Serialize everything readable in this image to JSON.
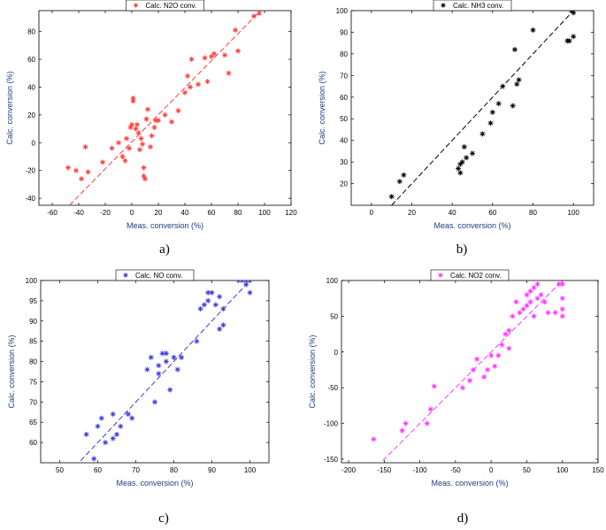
{
  "chart_data": [
    {
      "type": "scatter",
      "panel_label": "a)",
      "legend": "Calc. N2O conv.",
      "legend_position": "top-center",
      "color": "#ff3b3b",
      "xlabel": "Meas. conversion (%)",
      "ylabel": "Calc. conversion (%)",
      "xlim": [
        -70,
        120
      ],
      "ylim": [
        -45,
        95
      ],
      "xticks": [
        -60,
        -40,
        -20,
        0,
        20,
        40,
        60,
        80,
        100,
        120
      ],
      "yticks": [
        -40,
        -20,
        0,
        20,
        40,
        60,
        80
      ],
      "fit_line": [
        [
          -47,
          -45
        ],
        [
          97,
          95
        ]
      ],
      "points": [
        [
          -48,
          -18
        ],
        [
          -42,
          -20
        ],
        [
          -38,
          -26
        ],
        [
          -35,
          -3
        ],
        [
          -33,
          -21
        ],
        [
          -22,
          -14
        ],
        [
          -15,
          -4
        ],
        [
          -10,
          0
        ],
        [
          -7,
          -10
        ],
        [
          -5,
          -13
        ],
        [
          -4,
          3
        ],
        [
          -2,
          -4
        ],
        [
          -1,
          11
        ],
        [
          0,
          13
        ],
        [
          1,
          30
        ],
        [
          1,
          32
        ],
        [
          3,
          10
        ],
        [
          4,
          13
        ],
        [
          5,
          7
        ],
        [
          6,
          -5
        ],
        [
          7,
          3
        ],
        [
          8,
          -1
        ],
        [
          9,
          -18
        ],
        [
          9,
          -24
        ],
        [
          10,
          -26
        ],
        [
          11,
          17
        ],
        [
          12,
          24
        ],
        [
          14,
          -3
        ],
        [
          15,
          5
        ],
        [
          17,
          11
        ],
        [
          18,
          16
        ],
        [
          20,
          16
        ],
        [
          25,
          20
        ],
        [
          30,
          15
        ],
        [
          35,
          23
        ],
        [
          40,
          36
        ],
        [
          42,
          48
        ],
        [
          44,
          40
        ],
        [
          45,
          60
        ],
        [
          50,
          42
        ],
        [
          55,
          61
        ],
        [
          57,
          44
        ],
        [
          60,
          62
        ],
        [
          62,
          64
        ],
        [
          70,
          63
        ],
        [
          73,
          50
        ],
        [
          78,
          81
        ],
        [
          80,
          66
        ],
        [
          92,
          91
        ],
        [
          96,
          93
        ]
      ]
    },
    {
      "type": "scatter",
      "panel_label": "b)",
      "legend": "Calc. NH3 conv.",
      "legend_position": "top-center",
      "color": "#000000",
      "xlabel": "Meas. conversion (%)",
      "ylabel": "Calc. conversion (%)",
      "xlim": [
        -10,
        110
      ],
      "ylim": [
        10,
        100
      ],
      "xticks": [
        0,
        20,
        40,
        60,
        80,
        100
      ],
      "yticks": [
        20,
        30,
        40,
        50,
        60,
        70,
        80,
        90,
        100
      ],
      "fit_line": [
        [
          10,
          10
        ],
        [
          100,
          100
        ]
      ],
      "points": [
        [
          10,
          14
        ],
        [
          14,
          21
        ],
        [
          16,
          24
        ],
        [
          43,
          27
        ],
        [
          44,
          25
        ],
        [
          44,
          29
        ],
        [
          45,
          30
        ],
        [
          46,
          37
        ],
        [
          47,
          32
        ],
        [
          50,
          34
        ],
        [
          55,
          43
        ],
        [
          59,
          48
        ],
        [
          60,
          53
        ],
        [
          63,
          57
        ],
        [
          65,
          65
        ],
        [
          70,
          56
        ],
        [
          71,
          82
        ],
        [
          72,
          66
        ],
        [
          73,
          68
        ],
        [
          80,
          91
        ],
        [
          97,
          86
        ],
        [
          98,
          86
        ],
        [
          99,
          100
        ],
        [
          100,
          99
        ],
        [
          100,
          88
        ]
      ]
    },
    {
      "type": "scatter",
      "panel_label": "c)",
      "legend": "Calc. NO conv.",
      "legend_position": "top-center",
      "color": "#3a3ad6",
      "xlabel": "Meas. conversion (%)",
      "ylabel": "Calc. conversion (%)",
      "xlim": [
        45,
        105
      ],
      "ylim": [
        55,
        100
      ],
      "xticks": [
        50,
        60,
        70,
        80,
        90,
        100
      ],
      "yticks": [
        60,
        65,
        70,
        75,
        80,
        85,
        90,
        95,
        100
      ],
      "fit_line": [
        [
          55.5,
          55.5
        ],
        [
          100,
          100
        ]
      ],
      "points": [
        [
          57,
          62
        ],
        [
          59,
          56
        ],
        [
          60,
          64
        ],
        [
          61,
          66
        ],
        [
          62,
          60
        ],
        [
          64,
          67
        ],
        [
          64,
          61
        ],
        [
          65,
          62
        ],
        [
          66,
          64
        ],
        [
          68,
          67
        ],
        [
          69,
          66
        ],
        [
          73,
          78
        ],
        [
          74,
          81
        ],
        [
          75,
          70
        ],
        [
          76,
          77
        ],
        [
          76,
          79
        ],
        [
          77,
          82
        ],
        [
          78,
          80
        ],
        [
          78,
          82
        ],
        [
          79,
          73
        ],
        [
          80,
          81
        ],
        [
          81,
          78
        ],
        [
          82,
          81
        ],
        [
          86,
          85
        ],
        [
          87,
          93
        ],
        [
          88,
          94
        ],
        [
          89,
          95
        ],
        [
          89,
          97
        ],
        [
          90,
          97
        ],
        [
          91,
          94
        ],
        [
          92,
          96
        ],
        [
          92,
          88
        ],
        [
          93,
          89
        ],
        [
          93,
          93
        ],
        [
          97,
          100
        ],
        [
          98,
          100
        ],
        [
          99,
          100
        ],
        [
          99,
          99
        ],
        [
          100,
          97
        ],
        [
          100,
          100
        ]
      ]
    },
    {
      "type": "scatter",
      "panel_label": "d)",
      "legend": "Calc. NO2 conv.",
      "legend_position": "top-center",
      "color": "#ff33ff",
      "xlabel": "Meas. conversion (%)",
      "ylabel": "Calc. conversion (%)",
      "xlim": [
        -210,
        150
      ],
      "ylim": [
        -155,
        100
      ],
      "xticks": [
        -200,
        -150,
        -100,
        -50,
        0,
        50,
        100,
        150
      ],
      "yticks": [
        -150,
        -100,
        -50,
        0,
        50,
        100
      ],
      "fit_line": [
        [
          -160,
          -160
        ],
        [
          100,
          100
        ]
      ],
      "points": [
        [
          -165,
          -122
        ],
        [
          -125,
          -110
        ],
        [
          -120,
          -100
        ],
        [
          -90,
          -100
        ],
        [
          -85,
          -80
        ],
        [
          -80,
          -48
        ],
        [
          -40,
          -50
        ],
        [
          -30,
          -40
        ],
        [
          -25,
          -25
        ],
        [
          -20,
          -10
        ],
        [
          -10,
          -35
        ],
        [
          -5,
          -25
        ],
        [
          0,
          -5
        ],
        [
          5,
          -20
        ],
        [
          10,
          -5
        ],
        [
          15,
          10
        ],
        [
          20,
          25
        ],
        [
          25,
          5
        ],
        [
          25,
          30
        ],
        [
          30,
          50
        ],
        [
          35,
          70
        ],
        [
          40,
          55
        ],
        [
          45,
          60
        ],
        [
          50,
          80
        ],
        [
          50,
          65
        ],
        [
          55,
          85
        ],
        [
          55,
          70
        ],
        [
          60,
          90
        ],
        [
          60,
          50
        ],
        [
          65,
          95
        ],
        [
          65,
          75
        ],
        [
          70,
          80
        ],
        [
          75,
          70
        ],
        [
          80,
          55
        ],
        [
          90,
          55
        ],
        [
          95,
          95
        ],
        [
          100,
          95
        ],
        [
          100,
          60
        ],
        [
          100,
          75
        ],
        [
          100,
          50
        ]
      ]
    }
  ]
}
